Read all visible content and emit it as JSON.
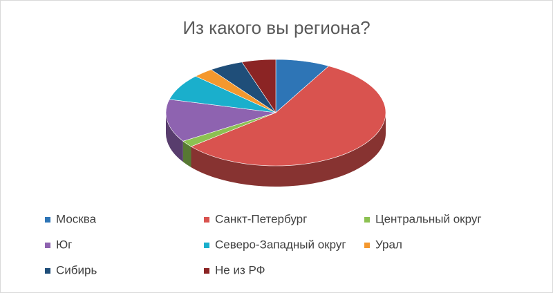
{
  "chart_data": {
    "type": "pie",
    "title": "Из какого вы региона?",
    "categories": [
      "Москва",
      "Санкт-Петербург",
      "Центральный округ",
      "Юг",
      "Северо-Западный округ",
      "Урал",
      "Сибирь",
      "Не из РФ"
    ],
    "values": [
      8,
      56,
      2,
      13,
      8,
      3,
      5,
      5
    ],
    "colors": [
      "#2e75b6",
      "#d9534f",
      "#8cc152",
      "#8e63b0",
      "#1aafcc",
      "#f4982e",
      "#1f4e79",
      "#8b2424"
    ],
    "legend": "bottom"
  }
}
